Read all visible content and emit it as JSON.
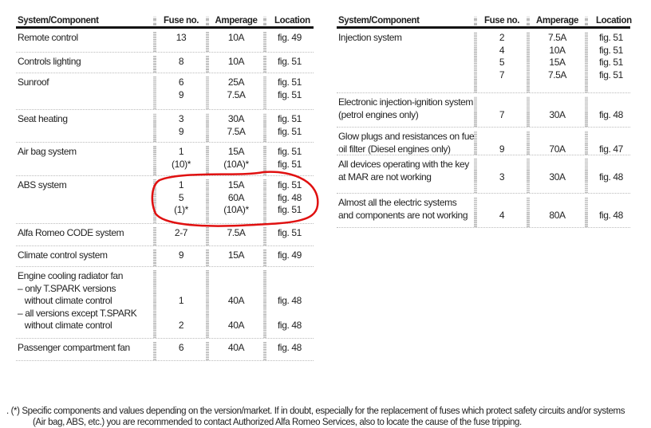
{
  "headers": {
    "component": "System/Component",
    "fuse": "Fuse no.",
    "amperage": "Amperage",
    "location": "Location"
  },
  "left_rows": [
    {
      "component": [
        "Remote control"
      ],
      "fuse": [
        "13"
      ],
      "amperage": [
        "10A"
      ],
      "location": [
        "fig. 49"
      ]
    },
    {
      "component": [
        "Controls lighting"
      ],
      "fuse": [
        "8"
      ],
      "amperage": [
        "10A"
      ],
      "location": [
        "fig. 51"
      ]
    },
    {
      "component": [
        "Sunroof"
      ],
      "fuse": [
        "6",
        "9"
      ],
      "amperage": [
        "25A",
        "7.5A"
      ],
      "location": [
        "fig. 51",
        "fig. 51"
      ]
    },
    {
      "component": [
        "Seat heating"
      ],
      "fuse": [
        "3",
        "9"
      ],
      "amperage": [
        "30A",
        "7.5A"
      ],
      "location": [
        "fig. 51",
        "fig. 51"
      ]
    },
    {
      "component": [
        "Air bag system"
      ],
      "fuse": [
        "1",
        "(10)*"
      ],
      "amperage": [
        "15A",
        "(10A)*"
      ],
      "location": [
        "fig. 51",
        "fig. 51"
      ]
    },
    {
      "component": [
        "ABS system"
      ],
      "fuse": [
        "1",
        "5",
        "(1)*"
      ],
      "amperage": [
        "15A",
        "60A",
        "(10A)*"
      ],
      "location": [
        "fig. 51",
        "fig. 48",
        "fig. 51"
      ]
    },
    {
      "component": [
        "Alfa Romeo CODE system"
      ],
      "fuse": [
        "2-7"
      ],
      "amperage": [
        "7.5A"
      ],
      "location": [
        "fig. 51"
      ]
    },
    {
      "component": [
        "Climate control system"
      ],
      "fuse": [
        "9"
      ],
      "amperage": [
        "15A"
      ],
      "location": [
        "fig. 49"
      ]
    },
    {
      "component": [
        "Engine cooling radiator fan",
        "– only T.SPARK versions",
        "   without climate control",
        "– all versions except T.SPARK",
        "   without climate control"
      ],
      "fuse": [
        "",
        "",
        "1",
        "",
        "2"
      ],
      "amperage": [
        "",
        "",
        "40A",
        "",
        "40A"
      ],
      "location": [
        "",
        "",
        "fig. 48",
        "",
        "fig. 48"
      ]
    },
    {
      "component": [
        "Passenger compartment fan"
      ],
      "fuse": [
        "6"
      ],
      "amperage": [
        "40A"
      ],
      "location": [
        "fig. 48"
      ]
    }
  ],
  "right_rows": [
    {
      "component": [
        "Injection system"
      ],
      "fuse": [
        "2",
        "4",
        "5",
        "7"
      ],
      "amperage": [
        "7.5A",
        "10A",
        "15A",
        "7.5A"
      ],
      "location": [
        "fig. 51",
        "fig. 51",
        "fig. 51",
        "fig. 51"
      ]
    },
    {
      "component": [
        "Electronic injection-ignition system",
        "(petrol engines only)"
      ],
      "fuse": [
        "",
        "7"
      ],
      "amperage": [
        "",
        "30A"
      ],
      "location": [
        "",
        "fig. 48"
      ]
    },
    {
      "component": [
        "Glow plugs and resistances on fuel",
        "oil filter (Diesel engines only)"
      ],
      "fuse": [
        "",
        "9"
      ],
      "amperage": [
        "",
        "70A"
      ],
      "location": [
        "",
        "fig. 47"
      ]
    },
    {
      "component": [
        "All devices operating with the key",
        "at MAR are not working"
      ],
      "fuse": [
        "",
        "3"
      ],
      "amperage": [
        "",
        "30A"
      ],
      "location": [
        "",
        "fig. 48"
      ]
    },
    {
      "component": [
        "Almost all the electric systems",
        "and components are not working"
      ],
      "fuse": [
        "",
        "4"
      ],
      "amperage": [
        "",
        "80A"
      ],
      "location": [
        "",
        "fig. 48"
      ]
    }
  ],
  "footnote": {
    "line1": ". (*)  Specific components and values depending on the version/market. If in doubt, especially for the replacement of fuses which protect safety circuits and/or systems",
    "line2": "(Air bag, ABS, etc.) you are recommended to contact Authorized Alfa Romeo Services, also to locate the cause of the fuse tripping."
  },
  "colors": {
    "annotation_ring": "#e01010"
  }
}
